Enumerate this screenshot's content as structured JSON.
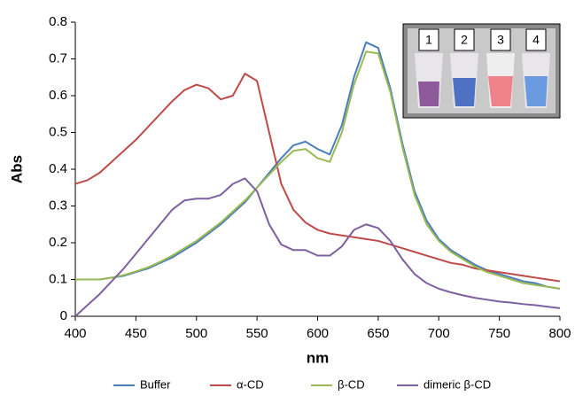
{
  "chart_data": {
    "type": "line",
    "x_label": "nm",
    "y_label": "Abs",
    "xlim": [
      400,
      800
    ],
    "xticks": [
      400,
      450,
      500,
      550,
      600,
      650,
      700,
      750,
      800
    ],
    "ylim": [
      0,
      0.8
    ],
    "yticks": [
      0,
      0.1,
      0.2,
      0.3,
      0.4,
      0.5,
      0.6,
      0.7,
      0.8
    ],
    "grid": false,
    "legend": "bottom",
    "inset_labels": [
      "1",
      "2",
      "3",
      "4"
    ],
    "x": [
      400,
      410,
      420,
      430,
      440,
      450,
      460,
      470,
      480,
      490,
      500,
      510,
      520,
      530,
      540,
      550,
      560,
      570,
      580,
      590,
      600,
      610,
      620,
      630,
      640,
      650,
      660,
      670,
      680,
      690,
      700,
      710,
      720,
      730,
      740,
      750,
      760,
      770,
      780,
      790,
      800
    ],
    "series": [
      {
        "name": "Buffer",
        "color": "#4a7ebb",
        "values": [
          0.1,
          0.1,
          0.1,
          0.105,
          0.11,
          0.12,
          0.13,
          0.145,
          0.16,
          0.18,
          0.2,
          0.225,
          0.25,
          0.28,
          0.31,
          0.35,
          0.39,
          0.43,
          0.465,
          0.475,
          0.455,
          0.44,
          0.52,
          0.65,
          0.745,
          0.73,
          0.62,
          0.47,
          0.34,
          0.26,
          0.21,
          0.18,
          0.16,
          0.14,
          0.125,
          0.115,
          0.105,
          0.095,
          0.09,
          0.08,
          0.075
        ]
      },
      {
        "name": "α-CD",
        "color": "#be4b48",
        "values": [
          0.36,
          0.37,
          0.39,
          0.42,
          0.45,
          0.48,
          0.515,
          0.55,
          0.585,
          0.615,
          0.63,
          0.62,
          0.59,
          0.6,
          0.66,
          0.64,
          0.5,
          0.36,
          0.29,
          0.255,
          0.235,
          0.225,
          0.22,
          0.215,
          0.21,
          0.205,
          0.195,
          0.185,
          0.175,
          0.165,
          0.155,
          0.145,
          0.14,
          0.13,
          0.125,
          0.12,
          0.115,
          0.11,
          0.105,
          0.1,
          0.095
        ]
      },
      {
        "name": "β-CD",
        "color": "#98b954",
        "values": [
          0.1,
          0.1,
          0.1,
          0.105,
          0.112,
          0.122,
          0.133,
          0.148,
          0.165,
          0.185,
          0.205,
          0.23,
          0.255,
          0.285,
          0.315,
          0.35,
          0.385,
          0.42,
          0.45,
          0.455,
          0.43,
          0.42,
          0.5,
          0.63,
          0.72,
          0.715,
          0.61,
          0.46,
          0.33,
          0.25,
          0.205,
          0.175,
          0.155,
          0.135,
          0.12,
          0.11,
          0.1,
          0.09,
          0.085,
          0.08,
          0.075
        ]
      },
      {
        "name": "dimeric β-CD",
        "color": "#7d60a0",
        "values": [
          0.0,
          0.03,
          0.06,
          0.095,
          0.13,
          0.17,
          0.21,
          0.25,
          0.29,
          0.315,
          0.32,
          0.32,
          0.33,
          0.36,
          0.375,
          0.34,
          0.25,
          0.195,
          0.18,
          0.18,
          0.165,
          0.165,
          0.19,
          0.235,
          0.25,
          0.24,
          0.205,
          0.155,
          0.115,
          0.09,
          0.075,
          0.065,
          0.057,
          0.05,
          0.045,
          0.04,
          0.037,
          0.033,
          0.03,
          0.026,
          0.022
        ]
      }
    ]
  }
}
